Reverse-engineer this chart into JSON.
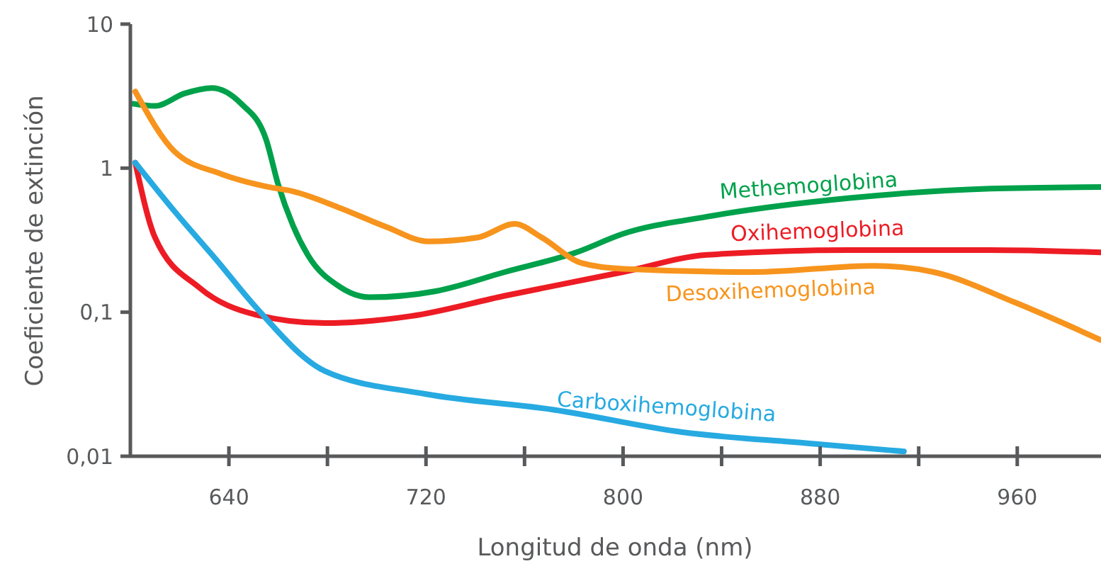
{
  "chart_data": {
    "type": "line",
    "xlabel": "Longitud de onda (nm)",
    "ylabel": "Coeficiente de extinción",
    "log": "y",
    "grid": false,
    "legend": false,
    "line_style": "solid",
    "xlim": [
      600,
      994
    ],
    "xticks": [
      640,
      {
        "value": 680,
        "label": null
      },
      720,
      {
        "value": 760,
        "label": null
      },
      800,
      {
        "value": 840,
        "label": null
      },
      880,
      {
        "value": 920,
        "label": null
      },
      960
    ],
    "ylim": [
      0.01,
      10
    ],
    "yticks": [
      {
        "value": 0.01,
        "label": "0,01"
      },
      {
        "value": 0.1,
        "label": "0,1"
      },
      1,
      10
    ],
    "series": [
      {
        "name": "Methemoglobina",
        "color": "#00a14b",
        "x": [
          601,
          610,
          622,
          633,
          645,
          655,
          660,
          666,
          672,
          685,
          697,
          724,
          752,
          781,
          800,
          834,
          892,
          949,
          994
        ],
        "values": [
          2.8,
          2.7,
          3.3,
          3.6,
          2.8,
          1.6,
          0.77,
          0.4,
          0.25,
          0.15,
          0.127,
          0.14,
          0.19,
          0.26,
          0.35,
          0.46,
          0.62,
          0.72,
          0.74
        ]
      },
      {
        "name": "Oxihemoglobina",
        "color": "#ed1c24",
        "x": [
          602,
          610,
          628,
          651,
          679,
          714,
          752,
          800,
          834,
          892,
          949,
          994
        ],
        "values": [
          1.09,
          0.33,
          0.148,
          0.096,
          0.084,
          0.094,
          0.13,
          0.19,
          0.25,
          0.27,
          0.27,
          0.26
        ]
      },
      {
        "name": "Desoxihemoglobina",
        "color": "#f7941d",
        "x": [
          602,
          618,
          637,
          656,
          666,
          685,
          704,
          721,
          741,
          756,
          767,
          783,
          800,
          853,
          902,
          926,
          959,
          994
        ],
        "values": [
          3.4,
          1.3,
          0.91,
          0.74,
          0.69,
          0.53,
          0.39,
          0.31,
          0.33,
          0.41,
          0.33,
          0.22,
          0.2,
          0.19,
          0.21,
          0.19,
          0.117,
          0.064
        ]
      },
      {
        "name": "Carboxihemoglobina",
        "color": "#27aae1",
        "x": [
          602,
          618,
          635,
          651,
          679,
          720,
          772,
          824,
          875,
          914
        ],
        "values": [
          1.09,
          0.5,
          0.23,
          0.108,
          0.039,
          0.027,
          0.021,
          0.0147,
          0.0123,
          0.0108
        ]
      }
    ]
  }
}
